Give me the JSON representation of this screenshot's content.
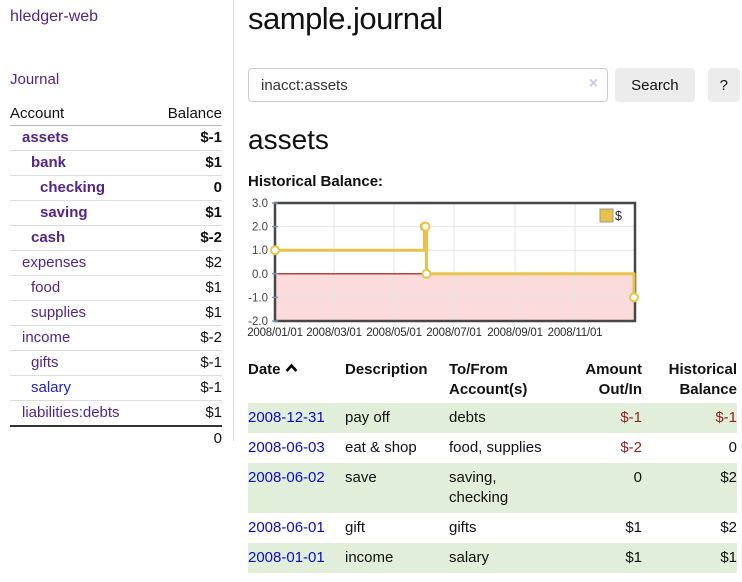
{
  "app": {
    "title": "hledger-web"
  },
  "sidebar": {
    "journal_link": "Journal",
    "accounts": {
      "headers": {
        "account": "Account",
        "balance": "Balance"
      },
      "rows": [
        {
          "name": "assets",
          "depth": 1,
          "bold": true,
          "blue": false,
          "balance": "$-1",
          "neg": "strong"
        },
        {
          "name": "bank",
          "depth": 2,
          "bold": true,
          "blue": false,
          "balance": "$1",
          "neg": null
        },
        {
          "name": "checking",
          "depth": 3,
          "bold": true,
          "blue": false,
          "balance": "0",
          "neg": null
        },
        {
          "name": "saving",
          "depth": 3,
          "bold": true,
          "blue": false,
          "balance": "$1",
          "neg": null
        },
        {
          "name": "cash",
          "depth": 2,
          "bold": true,
          "blue": false,
          "balance": "$-2",
          "neg": "strong"
        },
        {
          "name": "expenses",
          "depth": 1,
          "bold": false,
          "blue": false,
          "balance": "$2",
          "neg": null
        },
        {
          "name": "food",
          "depth": 2,
          "bold": false,
          "blue": false,
          "balance": "$1",
          "neg": null
        },
        {
          "name": "supplies",
          "depth": 2,
          "bold": false,
          "blue": false,
          "balance": "$1",
          "neg": null
        },
        {
          "name": "income",
          "depth": 1,
          "bold": false,
          "blue": false,
          "balance": "$-2",
          "neg": "soft"
        },
        {
          "name": "gifts",
          "depth": 2,
          "bold": false,
          "blue": false,
          "balance": "$-1",
          "neg": "soft"
        },
        {
          "name": "salary",
          "depth": 2,
          "bold": false,
          "blue": true,
          "balance": "$-1",
          "neg": "soft"
        },
        {
          "name": "liabilities:debts",
          "depth": 1,
          "bold": false,
          "blue": false,
          "balance": "$1",
          "neg": null
        }
      ],
      "total": "0"
    }
  },
  "main": {
    "title": "sample.journal",
    "search": {
      "value": "inacct:assets",
      "clear_icon": "×",
      "search_button": "Search",
      "help_button": "?"
    },
    "account_heading": "assets",
    "section_label": "Historical Balance:"
  },
  "chart_data": {
    "type": "line",
    "step": true,
    "title": "Historical Balance:",
    "series": [
      {
        "name": "$",
        "points": [
          [
            "2008-01-01",
            1
          ],
          [
            "2008-06-01",
            2
          ],
          [
            "2008-06-02",
            2
          ],
          [
            "2008-06-03",
            0
          ],
          [
            "2008-12-31",
            -1
          ]
        ]
      }
    ],
    "x_range": [
      "2008-01-01",
      "2009-01-01"
    ],
    "x_ticks": [
      "2008/01/01",
      "2008/03/01",
      "2008/05/01",
      "2008/07/01",
      "2008/09/01",
      "2008/11/01"
    ],
    "y_ticks": [
      3,
      2,
      1,
      0,
      -1,
      -2
    ],
    "ylim": [
      -2,
      3
    ],
    "grid": true,
    "legend_position": "top-right",
    "colors": {
      "line": "#e9c24a",
      "marker_fill": "#ffffff",
      "negative_region": "#fbdbdb",
      "zero_line": "#b30000",
      "border": "#474747",
      "gridline": "#e4e4e4",
      "axis_tick": "#7b93c6",
      "legend_box_border": "#999999"
    }
  },
  "register": {
    "columns": [
      {
        "lines": [
          "Date"
        ],
        "align": "left",
        "sorted": "asc"
      },
      {
        "lines": [
          "Description"
        ],
        "align": "left"
      },
      {
        "lines": [
          "To/From",
          "Account(s)"
        ],
        "align": "left"
      },
      {
        "lines": [
          "Amount",
          "Out/In"
        ],
        "align": "right"
      },
      {
        "lines": [
          "Historical",
          "Balance"
        ],
        "align": "right"
      }
    ],
    "rows": [
      {
        "date": "2008-12-31",
        "description": "pay off",
        "accounts": "debts",
        "amount": "$-1",
        "amount_neg": true,
        "balance": "$-1",
        "balance_neg": true,
        "highlight": true
      },
      {
        "date": "2008-06-03",
        "description": "eat & shop",
        "accounts": "food, supplies",
        "amount": "$-2",
        "amount_neg": true,
        "balance": "0",
        "balance_neg": false,
        "highlight": false
      },
      {
        "date": "2008-06-02",
        "description": "save",
        "accounts": "saving, checking",
        "amount": "0",
        "amount_neg": false,
        "balance": "$2",
        "balance_neg": false,
        "highlight": true
      },
      {
        "date": "2008-06-01",
        "description": "gift",
        "accounts": "gifts",
        "amount": "$1",
        "amount_neg": false,
        "balance": "$2",
        "balance_neg": false,
        "highlight": false
      },
      {
        "date": "2008-01-01",
        "description": "income",
        "accounts": "salary",
        "amount": "$1",
        "amount_neg": false,
        "balance": "$1",
        "balance_neg": false,
        "highlight": true
      }
    ]
  }
}
